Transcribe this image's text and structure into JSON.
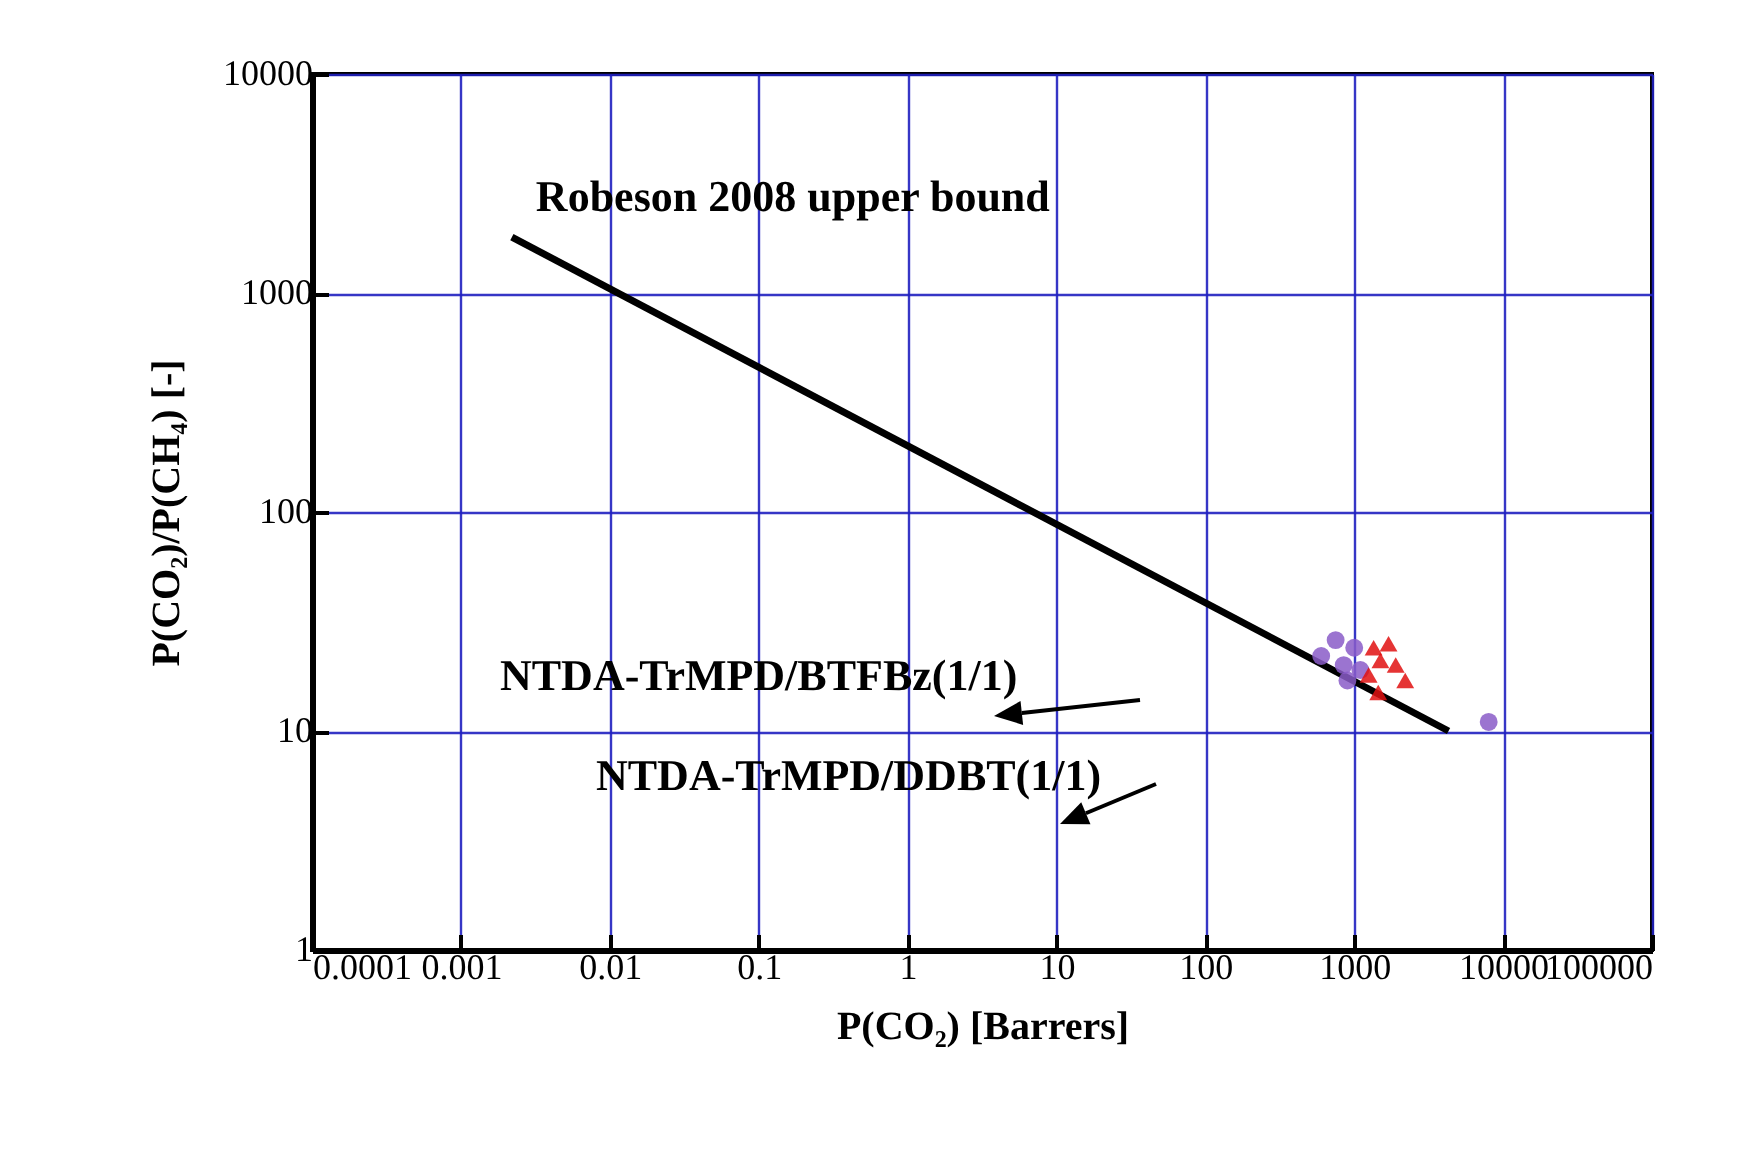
{
  "chart_data": {
    "type": "scatter",
    "xlabel": "P(CO₂) [Barrers]",
    "ylabel": "P(CO₂)/P(CH₄) [-]",
    "log": "xy",
    "xlim": [
      0.0001,
      100000
    ],
    "ylim": [
      1,
      10000
    ],
    "xticks": [
      0.0001,
      0.001,
      0.01,
      0.1,
      1,
      10,
      100,
      1000,
      10000,
      100000
    ],
    "yticks": [
      1,
      10,
      100,
      1000,
      10000
    ],
    "grid": true,
    "series": [
      {
        "name": "Robeson 2008 upper bound",
        "type": "line",
        "color": "#000000",
        "x": [
          0.0022,
          4300
        ],
        "values": [
          1800,
          10
        ]
      },
      {
        "color": "#8a5cc8",
        "marker": "circle",
        "x": [
          600,
          750,
          850,
          1000,
          1100,
          900,
          8000
        ],
        "values": [
          22,
          26,
          20,
          24,
          19,
          17,
          11
        ]
      },
      {
        "color": "#e01010",
        "marker": "triangle",
        "x": [
          1250,
          1500,
          1700,
          1900,
          2200,
          1450,
          1350
        ],
        "values": [
          18,
          21,
          25,
          20,
          17,
          15,
          24
        ]
      }
    ],
    "annotations": [
      "NTDA-TrMPD/BTFBz(1/1)",
      "NTDA-TrMPD/DDBT(1/1)"
    ]
  }
}
